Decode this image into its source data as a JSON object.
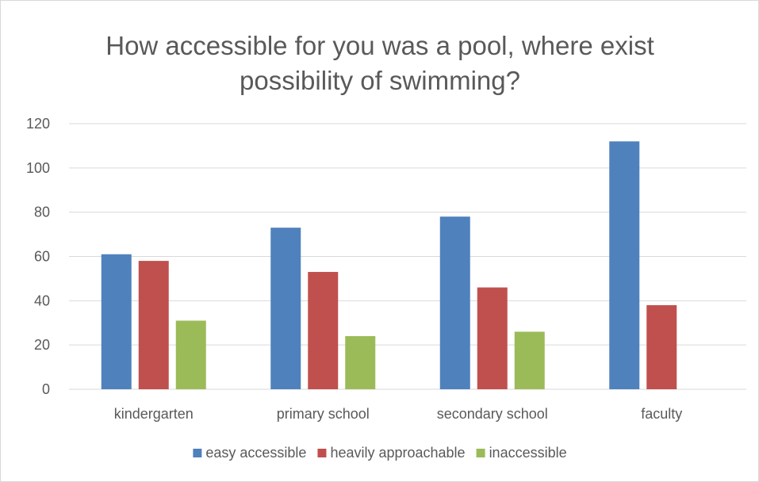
{
  "chart_data": {
    "type": "bar",
    "title": "How accessible for you was a pool, where exist possibility of swimming?",
    "title_lines": [
      "How accessible for you was a pool, where exist",
      "possibility of swimming?"
    ],
    "categories": [
      "kindergarten",
      "primary school",
      "secondary school",
      "faculty"
    ],
    "series": [
      {
        "name": "easy accessible",
        "color": "#4f81bd",
        "values": [
          61,
          73,
          78,
          112
        ]
      },
      {
        "name": "heavily approachable",
        "color": "#c0504d",
        "values": [
          58,
          53,
          46,
          38
        ]
      },
      {
        "name": "inaccessible",
        "color": "#9bbb59",
        "values": [
          31,
          24,
          26,
          0
        ]
      }
    ],
    "ylim": [
      0,
      120
    ],
    "yticks": [
      0,
      20,
      40,
      60,
      80,
      100,
      120
    ],
    "grid": true,
    "legend_position": "bottom"
  }
}
